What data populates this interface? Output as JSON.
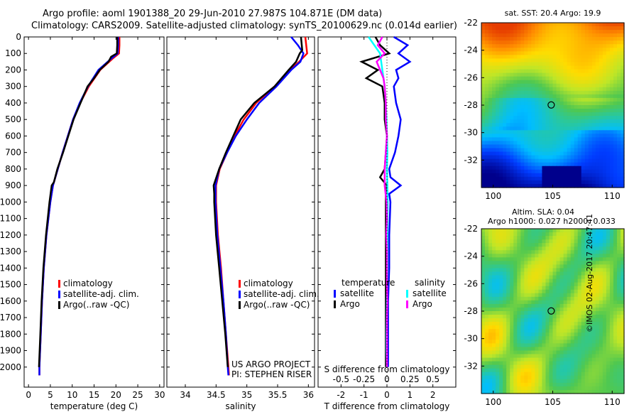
{
  "header": {
    "line1": "Argo profile: aoml 1901388_20 29-Jun-2010 27.987S 104.871E (DM data)",
    "line2": "Climatology: CARS2009. Satellite-adjusted climatology: synTS_20100629.nc (0.014d earlier)"
  },
  "credit": {
    "line1": "US ARGO PROJECT",
    "line2": "PI: STEPHEN RISER"
  },
  "stamp": "©IMOS 02-Aug-2017 20:47:41",
  "colors": {
    "climatology": "#ff0000",
    "satellite": "#0000ff",
    "argo": "#000000",
    "argo_salinity": "#ff00ff",
    "satellite_salinity": "#00ffff"
  },
  "chart_data": [
    {
      "type": "line",
      "name": "temperature-profile",
      "xlabel": "temperature (deg C)",
      "xlim": [
        -1,
        31
      ],
      "ylim": [
        2100,
        0
      ],
      "xticks": [
        0,
        5,
        10,
        15,
        20,
        25,
        30
      ],
      "yticks": [
        0,
        100,
        200,
        300,
        400,
        500,
        600,
        700,
        800,
        900,
        1000,
        1100,
        1200,
        1300,
        1400,
        1500,
        1600,
        1700,
        1800,
        1900,
        2000
      ],
      "legend": [
        "climatology",
        "satellite-adj. clim.",
        "Argo(..raw -QC)"
      ],
      "series": [
        {
          "name": "climatology",
          "color": "#ff0000",
          "depth": [
            0,
            50,
            100,
            130,
            200,
            300,
            400,
            500,
            600,
            700,
            800,
            900,
            1000,
            1200,
            1400,
            1600,
            1800,
            2000,
            2050
          ],
          "values": [
            20.8,
            20.8,
            20.7,
            19.3,
            16.4,
            13.8,
            11.8,
            10.2,
            9.0,
            7.8,
            6.7,
            5.6,
            5.0,
            4.1,
            3.5,
            3.1,
            2.8,
            2.5,
            2.5
          ]
        },
        {
          "name": "satellite-adj. clim.",
          "color": "#0000ff",
          "depth": [
            0,
            50,
            100,
            130,
            200,
            300,
            400,
            500,
            600,
            700,
            800,
            900,
            1000,
            1200,
            1400,
            1600,
            1800,
            2000,
            2050
          ],
          "values": [
            20.5,
            20.5,
            20.4,
            19.0,
            16.0,
            13.6,
            11.7,
            10.2,
            9.0,
            7.8,
            6.7,
            5.6,
            5.0,
            4.1,
            3.5,
            3.1,
            2.8,
            2.5,
            2.5
          ]
        },
        {
          "name": "Argo(..raw -QC)",
          "color": "#000000",
          "depth": [
            0,
            50,
            100,
            120,
            150,
            200,
            250,
            300,
            400,
            500,
            600,
            700,
            800,
            880,
            900,
            1000,
            1200,
            1400,
            1600,
            1800,
            2000
          ],
          "values": [
            20.3,
            20.3,
            20.2,
            18.9,
            18.3,
            16.3,
            15.0,
            13.5,
            11.9,
            10.3,
            9.1,
            7.9,
            6.6,
            5.8,
            5.3,
            4.8,
            4.0,
            3.4,
            3.0,
            2.7,
            2.4
          ]
        }
      ]
    },
    {
      "type": "line",
      "name": "salinity-profile",
      "xlabel": "salinity",
      "xlim": [
        33.7,
        36.1
      ],
      "ylim": [
        2100,
        0
      ],
      "xticks": [
        34,
        34.5,
        35,
        35.5,
        36
      ],
      "legend": [
        "climatology",
        "satellite-adj. clim.",
        "Argo(..raw -QC)"
      ],
      "series": [
        {
          "name": "climatology",
          "color": "#ff0000",
          "depth": [
            0,
            100,
            150,
            200,
            300,
            400,
            500,
            600,
            700,
            800,
            900,
            1000,
            1200,
            1400,
            1600,
            1800,
            2000,
            2050
          ],
          "values": [
            35.95,
            35.98,
            35.85,
            35.7,
            35.45,
            35.15,
            34.95,
            34.8,
            34.68,
            34.56,
            34.5,
            34.5,
            34.53,
            34.58,
            34.62,
            34.66,
            34.7,
            34.71
          ]
        },
        {
          "name": "satellite-adj. clim.",
          "color": "#0000ff",
          "depth": [
            0,
            50,
            100,
            150,
            200,
            300,
            400,
            500,
            600,
            700,
            800,
            900,
            1000,
            1200,
            1400,
            1600,
            1800,
            2000,
            2050
          ],
          "values": [
            35.72,
            35.83,
            35.92,
            35.87,
            35.72,
            35.48,
            35.2,
            35.0,
            34.82,
            34.68,
            34.55,
            34.49,
            34.49,
            34.52,
            34.57,
            34.62,
            34.66,
            34.69,
            34.7
          ]
        },
        {
          "name": "Argo(..raw -QC)",
          "color": "#000000",
          "depth": [
            0,
            80,
            100,
            150,
            200,
            300,
            400,
            500,
            600,
            700,
            800,
            900,
            950,
            1000,
            1200,
            1400,
            1600,
            1800,
            2000
          ],
          "values": [
            35.88,
            35.9,
            35.86,
            35.8,
            35.68,
            35.45,
            35.12,
            34.9,
            34.78,
            34.66,
            34.55,
            34.46,
            34.47,
            34.47,
            34.5,
            34.55,
            34.6,
            34.65,
            34.69
          ]
        }
      ]
    },
    {
      "type": "line",
      "name": "difference-profile",
      "xlabel": "T difference from climatology",
      "xlabel2": "S difference from climatology",
      "xlim": [
        -3,
        3
      ],
      "ylim": [
        2100,
        0
      ],
      "xticks": [
        -2,
        -1,
        0,
        1,
        2
      ],
      "xtick_labels": [
        "-2",
        "-1",
        "0",
        "1",
        "2"
      ],
      "sticks": [
        -0.5,
        -0.25,
        0,
        0.25,
        0.5
      ],
      "stick_labels": [
        "-0.5",
        "-0.25",
        "0",
        "0.25",
        "0.5"
      ],
      "legend_title_t": "temperature",
      "legend_title_s": "salinity",
      "legend": [
        "satellite",
        "Argo",
        "satellite",
        "Argo"
      ],
      "series": [
        {
          "name": "satellite",
          "quantity": "temperature",
          "color": "#0000ff",
          "depth": [
            0,
            50,
            100,
            150,
            200,
            250,
            300,
            400,
            500,
            600,
            700,
            800,
            850,
            900,
            950,
            1000,
            1200,
            1400,
            1600,
            1800,
            2000
          ],
          "values": [
            0.3,
            0.9,
            0.5,
            1.0,
            0.4,
            0.5,
            0.3,
            0.4,
            0.6,
            0.5,
            0.35,
            0.1,
            0.15,
            0.6,
            0.1,
            0.15,
            0.1,
            0.1,
            0.05,
            0.05,
            0.05
          ]
        },
        {
          "name": "Argo",
          "quantity": "temperature",
          "color": "#000000",
          "depth": [
            0,
            50,
            100,
            150,
            200,
            250,
            300,
            400,
            500,
            600,
            700,
            800,
            850,
            900,
            950,
            1000,
            1200,
            1400,
            1600,
            1800,
            2000
          ],
          "values": [
            -0.5,
            -0.3,
            0.1,
            -1.1,
            -0.4,
            -0.9,
            -0.2,
            -0.1,
            -0.1,
            0.0,
            -0.05,
            -0.1,
            -0.3,
            0.0,
            -0.05,
            -0.05,
            -0.05,
            -0.05,
            -0.05,
            -0.05,
            -0.05
          ]
        },
        {
          "name": "satellite",
          "quantity": "salinity",
          "color": "#00ffff",
          "depth": [
            0,
            50,
            100,
            200,
            300,
            400,
            500,
            600,
            700,
            800,
            900,
            1000,
            1200,
            1400,
            1600,
            1800,
            1900,
            2000
          ],
          "values": [
            -0.8,
            -0.55,
            -0.3,
            -0.2,
            -0.1,
            -0.05,
            -0.02,
            0.0,
            0.02,
            0.0,
            0.02,
            0.03,
            0.02,
            0.02,
            0.0,
            -0.02,
            -0.02,
            0.0
          ]
        },
        {
          "name": "Argo",
          "quantity": "salinity",
          "color": "#ff00ff",
          "depth": [
            0,
            50,
            100,
            150,
            200,
            250,
            300,
            400,
            500,
            600,
            700,
            800,
            900,
            1000,
            1100,
            1200,
            1300,
            1400,
            1500,
            1600,
            1700,
            1800,
            1900,
            2000
          ],
          "values": [
            -0.2,
            -0.4,
            -0.1,
            -0.45,
            -0.3,
            -0.15,
            -0.1,
            -0.05,
            -0.05,
            0.0,
            -0.05,
            -0.1,
            -0.1,
            -0.02,
            0.0,
            -0.03,
            0.0,
            0.0,
            0.0,
            0.02,
            0.0,
            0.0,
            0.0,
            0.0
          ]
        }
      ]
    },
    {
      "type": "heatmap",
      "name": "sst-map",
      "title": "sat. SST: 20.4  Argo: 19.9",
      "xlim": [
        99,
        111
      ],
      "ylim": [
        -34,
        -22
      ],
      "xticks": [
        100,
        105,
        110
      ],
      "yticks": [
        -22,
        -24,
        -26,
        -28,
        -30,
        -32
      ],
      "marker": {
        "lon": 104.871,
        "lat": -27.987
      }
    },
    {
      "type": "heatmap",
      "name": "sla-map",
      "title": "Altim. SLA: 0.04",
      "subtitle": "Argo h1000: 0.027 h2000: 0.033",
      "xlim": [
        99,
        111
      ],
      "ylim": [
        -34,
        -22
      ],
      "xticks": [
        100,
        105,
        110
      ],
      "yticks": [
        -22,
        -24,
        -26,
        -28,
        -30,
        -32
      ],
      "marker": {
        "lon": 104.871,
        "lat": -27.987
      }
    }
  ]
}
